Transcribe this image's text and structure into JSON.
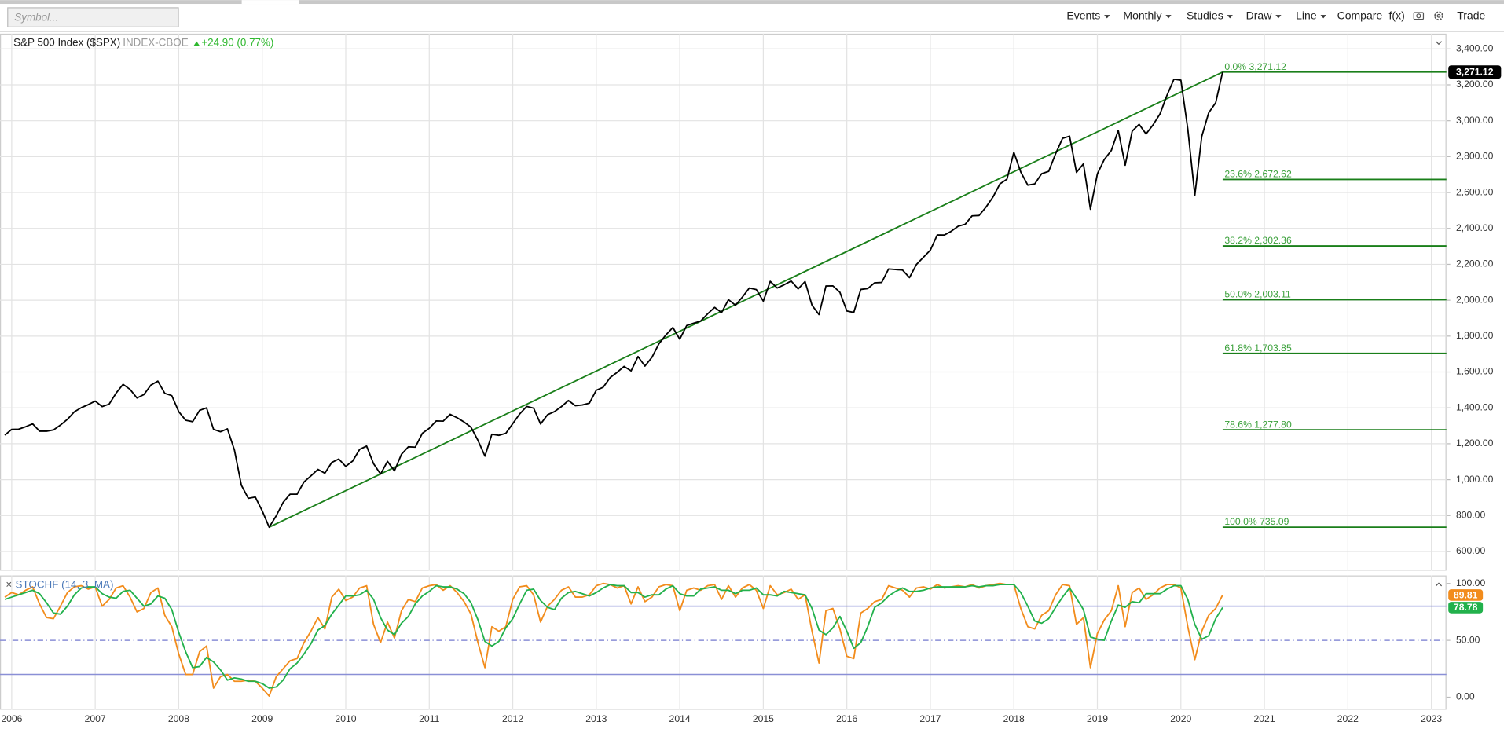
{
  "toolbar": {
    "symbol_placeholder": "Symbol...",
    "menus": [
      "Events",
      "Monthly",
      "Studies",
      "Draw",
      "Line"
    ],
    "buttons": [
      "Compare",
      "f(x)",
      "Trade"
    ]
  },
  "chart_data": [
    {
      "type": "line",
      "title": "S&P 500 Index ($SPX)",
      "exchange": "INDEX-CBOE",
      "change": "+24.90 (0.77%)",
      "x": [
        2005.917,
        2006,
        2006.083,
        2006.167,
        2006.25,
        2006.333,
        2006.417,
        2006.5,
        2006.583,
        2006.667,
        2006.75,
        2006.833,
        2006.917,
        2007,
        2007.083,
        2007.167,
        2007.25,
        2007.333,
        2007.417,
        2007.5,
        2007.583,
        2007.667,
        2007.75,
        2007.833,
        2007.917,
        2008,
        2008.083,
        2008.167,
        2008.25,
        2008.333,
        2008.417,
        2008.5,
        2008.583,
        2008.667,
        2008.75,
        2008.833,
        2008.917,
        2009,
        2009.083,
        2009.167,
        2009.25,
        2009.333,
        2009.417,
        2009.5,
        2009.583,
        2009.667,
        2009.75,
        2009.833,
        2009.917,
        2010,
        2010.083,
        2010.167,
        2010.25,
        2010.333,
        2010.417,
        2010.5,
        2010.583,
        2010.667,
        2010.75,
        2010.833,
        2010.917,
        2011,
        2011.083,
        2011.167,
        2011.25,
        2011.333,
        2011.417,
        2011.5,
        2011.583,
        2011.667,
        2011.75,
        2011.833,
        2011.917,
        2012,
        2012.083,
        2012.167,
        2012.25,
        2012.333,
        2012.417,
        2012.5,
        2012.583,
        2012.667,
        2012.75,
        2012.833,
        2012.917,
        2013,
        2013.083,
        2013.167,
        2013.25,
        2013.333,
        2013.417,
        2013.5,
        2013.583,
        2013.667,
        2013.75,
        2013.833,
        2013.917,
        2014,
        2014.083,
        2014.167,
        2014.25,
        2014.333,
        2014.417,
        2014.5,
        2014.583,
        2014.667,
        2014.75,
        2014.833,
        2014.917,
        2015,
        2015.083,
        2015.167,
        2015.25,
        2015.333,
        2015.417,
        2015.5,
        2015.583,
        2015.667,
        2015.75,
        2015.833,
        2015.917,
        2016,
        2016.083,
        2016.167,
        2016.25,
        2016.333,
        2016.417,
        2016.5,
        2016.583,
        2016.667,
        2016.75,
        2016.833,
        2016.917,
        2017,
        2017.083,
        2017.167,
        2017.25,
        2017.333,
        2017.417,
        2017.5,
        2017.583,
        2017.667,
        2017.75,
        2017.833,
        2017.917,
        2018,
        2018.083,
        2018.167,
        2018.25,
        2018.333,
        2018.417,
        2018.5,
        2018.583,
        2018.667,
        2018.75,
        2018.833,
        2018.917,
        2019,
        2019.083,
        2019.167,
        2019.25,
        2019.333,
        2019.417,
        2019.5,
        2019.583,
        2019.667,
        2019.75,
        2019.833,
        2019.917,
        2020,
        2020.083,
        2020.167,
        2020.25,
        2020.333,
        2020.417,
        2020.5
      ],
      "values": [
        1248,
        1280,
        1281,
        1295,
        1311,
        1270,
        1270,
        1277,
        1304,
        1336,
        1378,
        1401,
        1418,
        1438,
        1407,
        1421,
        1482,
        1531,
        1503,
        1455,
        1474,
        1527,
        1549,
        1481,
        1468,
        1379,
        1331,
        1323,
        1386,
        1400,
        1280,
        1267,
        1283,
        1165,
        969,
        896,
        903,
        826,
        735.09,
        798,
        873,
        919,
        919,
        987,
        1021,
        1057,
        1036,
        1096,
        1115,
        1074,
        1104,
        1169,
        1187,
        1089,
        1031,
        1102,
        1049,
        1141,
        1183,
        1181,
        1258,
        1286,
        1327,
        1326,
        1364,
        1345,
        1321,
        1292,
        1219,
        1131,
        1253,
        1247,
        1258,
        1312,
        1366,
        1408,
        1398,
        1310,
        1362,
        1379,
        1407,
        1441,
        1412,
        1416,
        1426,
        1498,
        1515,
        1569,
        1598,
        1631,
        1606,
        1686,
        1633,
        1682,
        1757,
        1806,
        1848,
        1783,
        1859,
        1872,
        1884,
        1924,
        1960,
        1931,
        2003,
        1972,
        2018,
        2068,
        2059,
        1995,
        2105,
        2068,
        2086,
        2107,
        2063,
        2104,
        1972,
        1920,
        2079,
        2080,
        2044,
        1940,
        1932,
        2060,
        2065,
        2097,
        2099,
        2174,
        2171,
        2168,
        2126,
        2199,
        2239,
        2279,
        2364,
        2363,
        2384,
        2412,
        2423,
        2470,
        2472,
        2519,
        2575,
        2648,
        2674,
        2824,
        2714,
        2641,
        2648,
        2705,
        2718,
        2816,
        2902,
        2914,
        2712,
        2760,
        2507,
        2704,
        2784,
        2834,
        2946,
        2752,
        2942,
        2980,
        2926,
        2977,
        3038,
        3141,
        3231,
        3226,
        2954,
        2585,
        2912,
        3044,
        3100,
        3271.12
      ],
      "color": "#000000",
      "last_label": "3,271.12",
      "xlim": [
        2005.86,
        2023.18
      ],
      "ylim": [
        493,
        3485
      ],
      "xticks": [
        2006,
        2007,
        2008,
        2009,
        2010,
        2011,
        2012,
        2013,
        2014,
        2015,
        2016,
        2017,
        2018,
        2019,
        2020,
        2021,
        2022,
        2023
      ],
      "yticks": [
        {
          "value": 600,
          "label": "600.00"
        },
        {
          "value": 800,
          "label": "800.00"
        },
        {
          "value": 1000,
          "label": "1,000.00"
        },
        {
          "value": 1200,
          "label": "1,200.00"
        },
        {
          "value": 1400,
          "label": "1,400.00"
        },
        {
          "value": 1600,
          "label": "1,600.00"
        },
        {
          "value": 1800,
          "label": "1,800.00"
        },
        {
          "value": 2000,
          "label": "2,000.00"
        },
        {
          "value": 2200,
          "label": "2,200.00"
        },
        {
          "value": 2400,
          "label": "2,400.00"
        },
        {
          "value": 2600,
          "label": "2,600.00"
        },
        {
          "value": 2800,
          "label": "2,800.00"
        },
        {
          "value": 3000,
          "label": "3,000.00"
        },
        {
          "value": 3200,
          "label": "3,200.00"
        },
        {
          "value": 3400,
          "label": "3,400.00"
        }
      ],
      "grid": true,
      "fibonacci": {
        "color": "#1a7f1a",
        "x": [
          2009.083,
          2020.5
        ],
        "levels": [
          {
            "value": 3271.12,
            "label": "0.0% 3,271.12"
          },
          {
            "value": 2672.62,
            "label": "23.6% 2,672.62"
          },
          {
            "value": 2302.36,
            "label": "38.2% 2,302.36"
          },
          {
            "value": 2003.11,
            "label": "50.0% 2,003.11"
          },
          {
            "value": 1703.85,
            "label": "61.8% 1,703.85"
          },
          {
            "value": 1277.8,
            "label": "78.6% 1,277.80"
          },
          {
            "value": 735.09,
            "label": "100.0% 735.09"
          }
        ]
      }
    },
    {
      "type": "line",
      "title": "STOCHF (14, 3, MA)",
      "x": [
        2005.917,
        2006,
        2006.083,
        2006.167,
        2006.25,
        2006.333,
        2006.417,
        2006.5,
        2006.583,
        2006.667,
        2006.75,
        2006.833,
        2006.917,
        2007,
        2007.083,
        2007.167,
        2007.25,
        2007.333,
        2007.417,
        2007.5,
        2007.583,
        2007.667,
        2007.75,
        2007.833,
        2007.917,
        2008,
        2008.083,
        2008.167,
        2008.25,
        2008.333,
        2008.417,
        2008.5,
        2008.583,
        2008.667,
        2008.75,
        2008.833,
        2008.917,
        2009,
        2009.083,
        2009.167,
        2009.25,
        2009.333,
        2009.417,
        2009.5,
        2009.583,
        2009.667,
        2009.75,
        2009.833,
        2009.917,
        2010,
        2010.083,
        2010.167,
        2010.25,
        2010.333,
        2010.417,
        2010.5,
        2010.583,
        2010.667,
        2010.75,
        2010.833,
        2010.917,
        2011,
        2011.083,
        2011.167,
        2011.25,
        2011.333,
        2011.417,
        2011.5,
        2011.583,
        2011.667,
        2011.75,
        2011.833,
        2011.917,
        2012,
        2012.083,
        2012.167,
        2012.25,
        2012.333,
        2012.417,
        2012.5,
        2012.583,
        2012.667,
        2012.75,
        2012.833,
        2012.917,
        2013,
        2013.083,
        2013.167,
        2013.25,
        2013.333,
        2013.417,
        2013.5,
        2013.583,
        2013.667,
        2013.75,
        2013.833,
        2013.917,
        2014,
        2014.083,
        2014.167,
        2014.25,
        2014.333,
        2014.417,
        2014.5,
        2014.583,
        2014.667,
        2014.75,
        2014.833,
        2014.917,
        2015,
        2015.083,
        2015.167,
        2015.25,
        2015.333,
        2015.417,
        2015.5,
        2015.583,
        2015.667,
        2015.75,
        2015.833,
        2015.917,
        2016,
        2016.083,
        2016.167,
        2016.25,
        2016.333,
        2016.417,
        2016.5,
        2016.583,
        2016.667,
        2016.75,
        2016.833,
        2016.917,
        2017,
        2017.083,
        2017.167,
        2017.25,
        2017.333,
        2017.417,
        2017.5,
        2017.583,
        2017.667,
        2017.75,
        2017.833,
        2017.917,
        2018,
        2018.083,
        2018.167,
        2018.25,
        2018.333,
        2018.417,
        2018.5,
        2018.583,
        2018.667,
        2018.75,
        2018.833,
        2018.917,
        2019,
        2019.083,
        2019.167,
        2019.25,
        2019.333,
        2019.417,
        2019.5,
        2019.583,
        2019.667,
        2019.75,
        2019.833,
        2019.917,
        2020,
        2020.083,
        2020.167,
        2020.25,
        2020.333,
        2020.417,
        2020.5
      ],
      "series": [
        {
          "color": "#f28c1c",
          "values": [
            88,
            92,
            90,
            94,
            97,
            82,
            70,
            69,
            80,
            92,
            97,
            98,
            95,
            97,
            80,
            86,
            96,
            98,
            88,
            75,
            78,
            92,
            96,
            72,
            62,
            38,
            20,
            20,
            40,
            45,
            8,
            18,
            20,
            14,
            14,
            15,
            14,
            8,
            1,
            18,
            25,
            32,
            34,
            48,
            58,
            70,
            60,
            88,
            95,
            85,
            88,
            96,
            98,
            64,
            48,
            66,
            52,
            76,
            86,
            84,
            96,
            98,
            99,
            94,
            98,
            92,
            84,
            73,
            48,
            26,
            62,
            58,
            62,
            86,
            97,
            98,
            90,
            66,
            80,
            86,
            94,
            97,
            88,
            88,
            90,
            98,
            100,
            99,
            96,
            98,
            82,
            97,
            84,
            88,
            97,
            99,
            98,
            76,
            94,
            96,
            94,
            98,
            99,
            86,
            98,
            88,
            96,
            99,
            94,
            78,
            98,
            90,
            92,
            95,
            86,
            90,
            58,
            30,
            76,
            78,
            60,
            36,
            34,
            74,
            78,
            84,
            86,
            98,
            96,
            94,
            88,
            96,
            97,
            95,
            99,
            96,
            97,
            98,
            97,
            99,
            96,
            98,
            99,
            100,
            99,
            99,
            78,
            62,
            60,
            72,
            76,
            90,
            99,
            98,
            64,
            70,
            26,
            56,
            68,
            76,
            98,
            62,
            92,
            96,
            86,
            90,
            96,
            99,
            99,
            96,
            62,
            33,
            58,
            72,
            78,
            89.81
          ]
        },
        {
          "color": "#22b14c",
          "values": [
            86,
            88,
            90,
            92,
            94,
            91,
            83,
            74,
            73,
            80,
            90,
            96,
            97,
            97,
            91,
            88,
            87,
            93,
            94,
            87,
            80,
            82,
            89,
            87,
            77,
            57,
            40,
            26,
            27,
            35,
            31,
            24,
            15,
            17,
            16,
            14,
            14,
            12,
            8,
            9,
            15,
            25,
            30,
            38,
            47,
            59,
            63,
            73,
            81,
            89,
            89,
            90,
            94,
            86,
            70,
            59,
            55,
            65,
            71,
            82,
            89,
            93,
            98,
            97,
            97,
            95,
            91,
            83,
            68,
            49,
            45,
            49,
            61,
            69,
            82,
            94,
            95,
            85,
            79,
            77,
            87,
            92,
            93,
            91,
            89,
            92,
            96,
            99,
            98,
            98,
            92,
            92,
            88,
            90,
            90,
            95,
            98,
            91,
            89,
            89,
            95,
            96,
            97,
            94,
            94,
            91,
            94,
            94,
            96,
            90,
            90,
            89,
            93,
            92,
            91,
            90,
            78,
            59,
            55,
            61,
            71,
            58,
            43,
            48,
            62,
            79,
            83,
            89,
            93,
            96,
            93,
            93,
            94,
            96,
            97,
            97,
            97,
            97,
            97,
            98,
            97,
            98,
            98,
            99,
            99,
            99,
            92,
            80,
            67,
            65,
            69,
            79,
            88,
            96,
            87,
            77,
            53,
            51,
            50,
            67,
            81,
            79,
            84,
            83,
            91,
            91,
            91,
            95,
            98,
            98,
            86,
            64,
            51,
            54,
            69,
            78.78
          ]
        }
      ],
      "levels": [
        80,
        50,
        20
      ],
      "level_color": "#8a8fd6",
      "level_dash": [
        false,
        true,
        false
      ],
      "xlim": [
        2005.86,
        2023.18
      ],
      "ylim": [
        -11,
        107
      ],
      "xticks": [
        2006,
        2007,
        2008,
        2009,
        2010,
        2011,
        2012,
        2013,
        2014,
        2015,
        2016,
        2017,
        2018,
        2019,
        2020,
        2021,
        2022,
        2023
      ],
      "yticks": [
        {
          "value": 0,
          "label": "0.00"
        },
        {
          "value": 50,
          "label": "50.00"
        },
        {
          "value": 100,
          "label": "100.00"
        }
      ],
      "grid": true
    }
  ]
}
